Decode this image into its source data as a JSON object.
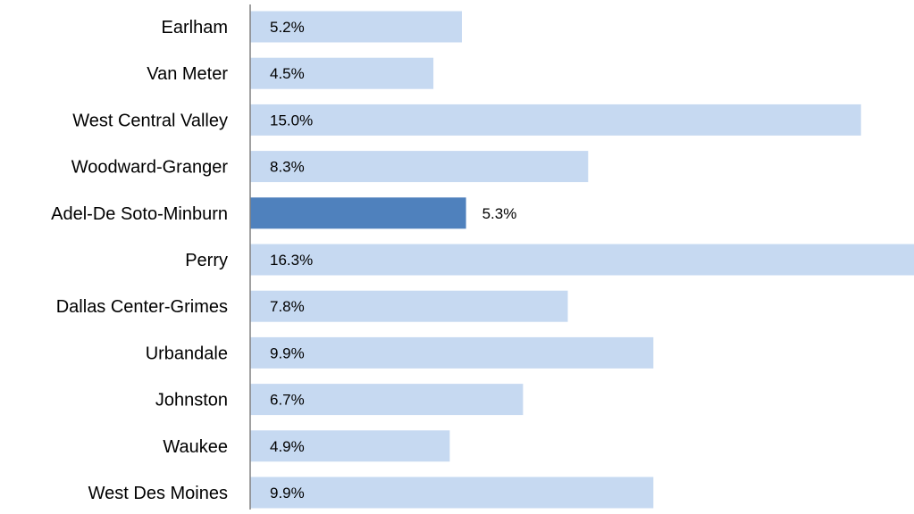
{
  "chart_data": {
    "type": "bar",
    "orientation": "horizontal",
    "categories": [
      "Earlham",
      "Van Meter",
      "West Central Valley",
      "Woodward-Granger",
      "Adel-De Soto-Minburn",
      "Perry",
      "Dallas Center-Grimes",
      "Urbandale",
      "Johnston",
      "Waukee",
      "West Des Moines"
    ],
    "values": [
      5.2,
      4.5,
      15.0,
      8.3,
      5.3,
      16.3,
      7.8,
      9.9,
      6.7,
      4.9,
      9.9
    ],
    "value_labels": [
      "5.2%",
      "4.5%",
      "15.0%",
      "8.3%",
      "5.3%",
      "16.3%",
      "7.8%",
      "9.9%",
      "6.7%",
      "4.9%",
      "9.9%"
    ],
    "highlight_category": "Adel-De Soto-Minburn",
    "title": "",
    "xlabel": "",
    "ylabel": "",
    "xlim": [
      0,
      16.3
    ],
    "grid": false,
    "legend": "none",
    "colors": {
      "bar": "#c6d9f1",
      "highlight": "#4f81bd",
      "axis": "#808080",
      "text": "#000000"
    }
  }
}
